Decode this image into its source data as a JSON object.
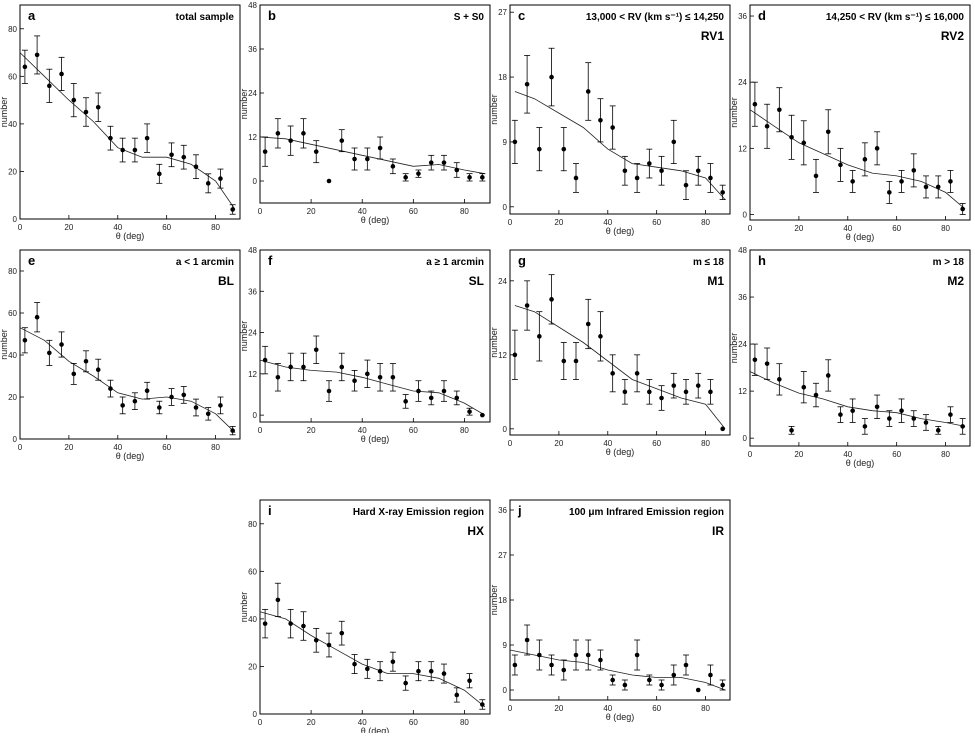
{
  "chart_data": [
    {
      "type": "scatter",
      "panel_letter": "a",
      "title": "total sample",
      "code": "",
      "xlabel": "θ (deg)",
      "ylabel": "number",
      "xlim": [
        0,
        90
      ],
      "ylim": [
        0,
        90
      ],
      "xticks": [
        0,
        20,
        40,
        60,
        80
      ],
      "yticks": [
        0,
        20,
        40,
        60,
        80
      ],
      "x": [
        2,
        7,
        12,
        17,
        22,
        27,
        32,
        37,
        42,
        47,
        52,
        57,
        62,
        67,
        72,
        77,
        82,
        87
      ],
      "y": [
        64,
        69,
        56,
        61,
        50,
        45,
        47,
        34,
        29,
        29,
        34,
        19,
        27,
        26,
        22,
        15,
        17,
        4
      ],
      "err": [
        7,
        8,
        7,
        7,
        7,
        6,
        6,
        5,
        5,
        5,
        6,
        4,
        5,
        5,
        5,
        4,
        4,
        2
      ],
      "fit": [
        [
          0,
          70
        ],
        [
          10,
          60
        ],
        [
          20,
          50
        ],
        [
          30,
          41
        ],
        [
          40,
          30
        ],
        [
          50,
          26
        ],
        [
          60,
          26
        ],
        [
          70,
          23
        ],
        [
          80,
          16
        ],
        [
          88,
          4
        ]
      ]
    },
    {
      "type": "scatter",
      "panel_letter": "b",
      "title": "S + S0",
      "code": "",
      "xlabel": "θ (deg)",
      "ylabel": "number",
      "xlim": [
        0,
        90
      ],
      "ylim": [
        -6,
        48
      ],
      "xticks": [
        0,
        20,
        40,
        60,
        80
      ],
      "yticks": [
        0,
        12,
        24,
        36,
        48
      ],
      "x": [
        2,
        7,
        12,
        17,
        22,
        27,
        32,
        37,
        42,
        47,
        52,
        57,
        62,
        67,
        72,
        77,
        82,
        87
      ],
      "y": [
        8,
        13,
        11,
        13,
        8,
        0,
        11,
        6,
        6,
        9,
        4,
        1,
        2,
        5,
        5,
        3,
        1,
        1
      ],
      "err": [
        4,
        4,
        4,
        4,
        3,
        0,
        3,
        3,
        3,
        3,
        2,
        1,
        1,
        2,
        2,
        2,
        1,
        1
      ],
      "fit": [
        [
          0,
          12
        ],
        [
          10,
          11.5
        ],
        [
          20,
          10
        ],
        [
          30,
          8.5
        ],
        [
          40,
          7
        ],
        [
          50,
          5.5
        ],
        [
          60,
          4
        ],
        [
          70,
          4.5
        ],
        [
          80,
          3
        ],
        [
          88,
          2
        ]
      ]
    },
    {
      "type": "scatter",
      "panel_letter": "c",
      "title": "13,000 < RV (km s⁻¹) ≤ 14,250",
      "code": "RV1",
      "xlabel": "θ (deg)",
      "ylabel": "number",
      "xlim": [
        0,
        90
      ],
      "ylim": [
        -1,
        28
      ],
      "xticks": [
        0,
        20,
        40,
        60,
        80
      ],
      "yticks": [
        0,
        9,
        18,
        27
      ],
      "x": [
        2,
        7,
        12,
        17,
        22,
        27,
        32,
        37,
        42,
        47,
        52,
        57,
        62,
        67,
        72,
        77,
        82,
        87
      ],
      "y": [
        9,
        17,
        8,
        18,
        8,
        4,
        16,
        12,
        11,
        5,
        4,
        6,
        5,
        9,
        3,
        5,
        4,
        2
      ],
      "err": [
        3,
        4,
        3,
        4,
        3,
        2,
        4,
        3,
        3,
        2,
        2,
        2,
        2,
        3,
        2,
        2,
        2,
        1
      ],
      "fit": [
        [
          2,
          16
        ],
        [
          10,
          15
        ],
        [
          20,
          13
        ],
        [
          30,
          11
        ],
        [
          40,
          8
        ],
        [
          50,
          6
        ],
        [
          60,
          5.5
        ],
        [
          70,
          5
        ],
        [
          80,
          4
        ],
        [
          88,
          1
        ]
      ]
    },
    {
      "type": "scatter",
      "panel_letter": "d",
      "title": "14,250 < RV (km s⁻¹) ≤ 16,000",
      "code": "RV2",
      "xlabel": "θ (deg)",
      "ylabel": "number",
      "xlim": [
        0,
        90
      ],
      "ylim": [
        -1,
        38
      ],
      "xticks": [
        0,
        20,
        40,
        60,
        80
      ],
      "yticks": [
        0,
        12,
        24,
        36
      ],
      "x": [
        2,
        7,
        12,
        17,
        22,
        27,
        32,
        37,
        42,
        47,
        52,
        57,
        62,
        67,
        72,
        77,
        82,
        87
      ],
      "y": [
        20,
        16,
        19,
        14,
        13,
        7,
        15,
        9,
        6,
        10,
        12,
        4,
        6,
        8,
        5,
        5,
        6,
        1
      ],
      "err": [
        4,
        4,
        4,
        4,
        4,
        3,
        4,
        3,
        2,
        3,
        3,
        2,
        2,
        3,
        2,
        2,
        2,
        1
      ],
      "fit": [
        [
          0,
          19
        ],
        [
          10,
          16
        ],
        [
          20,
          13
        ],
        [
          30,
          11
        ],
        [
          40,
          9
        ],
        [
          50,
          7.5
        ],
        [
          60,
          7
        ],
        [
          70,
          6
        ],
        [
          80,
          4
        ],
        [
          88,
          1
        ]
      ]
    },
    {
      "type": "scatter",
      "panel_letter": "e",
      "title": "a < 1 arcmin",
      "code": "BL",
      "xlabel": "θ (deg)",
      "ylabel": "number",
      "xlim": [
        0,
        90
      ],
      "ylim": [
        0,
        90
      ],
      "xticks": [
        0,
        20,
        40,
        60,
        80
      ],
      "yticks": [
        0,
        20,
        40,
        60,
        80
      ],
      "x": [
        2,
        7,
        12,
        17,
        22,
        27,
        32,
        37,
        42,
        47,
        52,
        57,
        62,
        67,
        72,
        77,
        82,
        87
      ],
      "y": [
        47,
        58,
        41,
        45,
        31,
        37,
        33,
        24,
        16,
        18,
        23,
        15,
        20,
        21,
        15,
        12,
        16,
        4
      ],
      "err": [
        6,
        7,
        6,
        6,
        5,
        5,
        5,
        4,
        4,
        4,
        4,
        3,
        4,
        4,
        4,
        3,
        4,
        2
      ],
      "fit": [
        [
          0,
          53
        ],
        [
          10,
          47
        ],
        [
          20,
          37
        ],
        [
          30,
          30
        ],
        [
          40,
          22
        ],
        [
          50,
          19
        ],
        [
          60,
          20
        ],
        [
          70,
          18
        ],
        [
          80,
          12
        ],
        [
          88,
          3
        ]
      ]
    },
    {
      "type": "scatter",
      "panel_letter": "f",
      "title": "a ≥ 1 arcmin",
      "code": "SL",
      "xlabel": "θ (deg)",
      "ylabel": "number",
      "xlim": [
        0,
        90
      ],
      "ylim": [
        -2,
        48
      ],
      "xticks": [
        0,
        20,
        40,
        60,
        80
      ],
      "yticks": [
        0,
        12,
        24,
        36,
        48
      ],
      "x": [
        2,
        7,
        12,
        17,
        22,
        27,
        32,
        37,
        42,
        47,
        52,
        57,
        62,
        67,
        72,
        77,
        82,
        87
      ],
      "y": [
        16,
        11,
        14,
        14,
        19,
        7,
        14,
        10,
        12,
        11,
        11,
        4,
        7,
        5,
        7,
        5,
        1,
        0
      ],
      "err": [
        4,
        4,
        4,
        4,
        4,
        3,
        4,
        3,
        4,
        4,
        4,
        2,
        3,
        2,
        3,
        2,
        1,
        0
      ],
      "fit": [
        [
          0,
          16
        ],
        [
          10,
          14
        ],
        [
          20,
          13
        ],
        [
          30,
          12.5
        ],
        [
          40,
          11
        ],
        [
          50,
          9
        ],
        [
          60,
          7
        ],
        [
          70,
          6.5
        ],
        [
          80,
          3.5
        ],
        [
          88,
          0
        ]
      ]
    },
    {
      "type": "scatter",
      "panel_letter": "g",
      "title": "m ≤ 18",
      "code": "M1",
      "xlabel": "θ (deg)",
      "ylabel": "number",
      "xlim": [
        0,
        90
      ],
      "ylim": [
        -1,
        29
      ],
      "xticks": [
        0,
        20,
        40,
        60,
        80
      ],
      "yticks": [
        0,
        12,
        24
      ],
      "x": [
        2,
        7,
        12,
        17,
        22,
        27,
        32,
        37,
        42,
        47,
        52,
        57,
        62,
        67,
        72,
        77,
        82,
        87
      ],
      "y": [
        12,
        20,
        15,
        21,
        11,
        11,
        17,
        15,
        9,
        6,
        9,
        6,
        5,
        7,
        6,
        7,
        6,
        0
      ],
      "err": [
        4,
        4,
        4,
        4,
        3,
        3,
        4,
        4,
        3,
        2,
        3,
        2,
        2,
        2,
        2,
        2,
        2,
        0
      ],
      "fit": [
        [
          2,
          20
        ],
        [
          10,
          19
        ],
        [
          20,
          16.5
        ],
        [
          30,
          14
        ],
        [
          40,
          11
        ],
        [
          50,
          8
        ],
        [
          60,
          6.5
        ],
        [
          70,
          5
        ],
        [
          80,
          4
        ],
        [
          88,
          0
        ]
      ]
    },
    {
      "type": "scatter",
      "panel_letter": "h",
      "title": "m > 18",
      "code": "M2",
      "xlabel": "θ (deg)",
      "ylabel": "number",
      "xlim": [
        0,
        90
      ],
      "ylim": [
        -2,
        48
      ],
      "xticks": [
        0,
        20,
        40,
        60,
        80
      ],
      "yticks": [
        0,
        12,
        24,
        36,
        48
      ],
      "x": [
        2,
        7,
        12,
        17,
        22,
        27,
        32,
        37,
        42,
        47,
        52,
        57,
        62,
        67,
        72,
        77,
        82,
        87
      ],
      "y": [
        20,
        19,
        15,
        2,
        13,
        11,
        16,
        6,
        7,
        3,
        8,
        5,
        7,
        5,
        4,
        2,
        6,
        3
      ],
      "err": [
        4,
        4,
        4,
        1,
        4,
        3,
        4,
        2,
        3,
        2,
        3,
        2,
        3,
        2,
        2,
        1,
        2,
        2
      ],
      "fit": [
        [
          0,
          17
        ],
        [
          10,
          14
        ],
        [
          20,
          11.5
        ],
        [
          30,
          10
        ],
        [
          40,
          8
        ],
        [
          50,
          7
        ],
        [
          60,
          6.5
        ],
        [
          70,
          5
        ],
        [
          80,
          4
        ],
        [
          88,
          3
        ]
      ]
    },
    {
      "type": "scatter",
      "panel_letter": "i",
      "title": "Hard X-ray Emission region",
      "code": "HX",
      "xlabel": "θ (deg)",
      "ylabel": "number",
      "xlim": [
        0,
        90
      ],
      "ylim": [
        0,
        90
      ],
      "xticks": [
        0,
        20,
        40,
        60,
        80
      ],
      "yticks": [
        0,
        20,
        40,
        60,
        80
      ],
      "x": [
        2,
        7,
        12,
        17,
        22,
        27,
        32,
        37,
        42,
        47,
        52,
        57,
        62,
        67,
        72,
        77,
        82,
        87
      ],
      "y": [
        38,
        48,
        38,
        37,
        31,
        29,
        34,
        21,
        19,
        18,
        22,
        13,
        18,
        18,
        17,
        8,
        14,
        4
      ],
      "err": [
        6,
        7,
        6,
        6,
        5,
        5,
        5,
        4,
        4,
        4,
        4,
        3,
        4,
        4,
        4,
        3,
        3,
        2
      ],
      "fit": [
        [
          0,
          43
        ],
        [
          10,
          40
        ],
        [
          20,
          33
        ],
        [
          30,
          27
        ],
        [
          40,
          21
        ],
        [
          50,
          17
        ],
        [
          60,
          17
        ],
        [
          70,
          15
        ],
        [
          80,
          10
        ],
        [
          88,
          3
        ]
      ]
    },
    {
      "type": "scatter",
      "panel_letter": "j",
      "title": "100 μm Infrared Emission region",
      "code": "IR",
      "xlabel": "θ (deg)",
      "ylabel": "number",
      "xlim": [
        0,
        90
      ],
      "ylim": [
        -2,
        38
      ],
      "xticks": [
        0,
        20,
        40,
        60,
        80
      ],
      "yticks": [
        0,
        9,
        18,
        27,
        36
      ],
      "x": [
        2,
        7,
        12,
        17,
        22,
        27,
        32,
        37,
        42,
        47,
        52,
        57,
        62,
        67,
        72,
        77,
        82,
        87
      ],
      "y": [
        5,
        10,
        7,
        5,
        4,
        7,
        7,
        6,
        2,
        1,
        7,
        2,
        1,
        3,
        5,
        0,
        3,
        1
      ],
      "err": [
        2,
        3,
        3,
        2,
        2,
        3,
        3,
        2,
        1,
        1,
        3,
        1,
        1,
        2,
        2,
        0,
        2,
        1
      ],
      "fit": [
        [
          0,
          8
        ],
        [
          10,
          7
        ],
        [
          20,
          6
        ],
        [
          30,
          5.5
        ],
        [
          40,
          4
        ],
        [
          50,
          3
        ],
        [
          60,
          2.5
        ],
        [
          70,
          2.5
        ],
        [
          80,
          1.5
        ],
        [
          88,
          0
        ]
      ]
    }
  ]
}
